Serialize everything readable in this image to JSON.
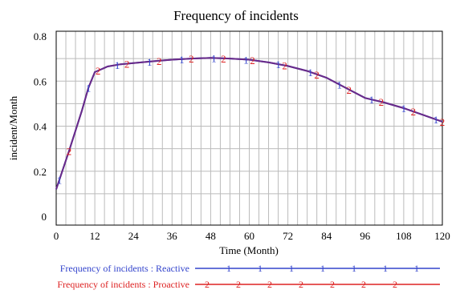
{
  "chart_data": {
    "type": "line",
    "title": "Frequency of incidents",
    "xlabel": "Time (Month)",
    "ylabel": "incident/Month",
    "xlim": [
      0,
      120
    ],
    "ylim": [
      0,
      0.8
    ],
    "x_ticks": [
      0,
      12,
      24,
      36,
      48,
      60,
      72,
      84,
      96,
      108,
      120
    ],
    "y_ticks": [
      0,
      0.2,
      0.4,
      0.6,
      0.8
    ],
    "y_tick_labels": [
      "0",
      "0.2",
      "0.4",
      "0.6",
      "0.8"
    ],
    "grid": true,
    "legend_position": "bottom",
    "series": [
      {
        "name": "Frequency of incidents : Reactive",
        "marker": "1",
        "color": "#3344cc",
        "x": [
          0,
          4,
          8,
          10,
          12,
          16,
          20,
          24,
          30,
          36,
          42,
          48,
          54,
          60,
          66,
          72,
          78,
          84,
          90,
          96,
          102,
          108,
          114,
          120
        ],
        "y": [
          0.12,
          0.29,
          0.47,
          0.57,
          0.64,
          0.665,
          0.675,
          0.68,
          0.688,
          0.695,
          0.7,
          0.703,
          0.7,
          0.695,
          0.683,
          0.667,
          0.645,
          0.615,
          0.57,
          0.525,
          0.505,
          0.48,
          0.45,
          0.42
        ],
        "marker_x": [
          1,
          10,
          19,
          29,
          39,
          49,
          59,
          69,
          79,
          88,
          98,
          108,
          118
        ]
      },
      {
        "name": "Frequency of incidents : Proactive",
        "marker": "2",
        "color": "#dd2222",
        "x": [
          0,
          4,
          8,
          10,
          12,
          16,
          20,
          24,
          30,
          36,
          42,
          48,
          54,
          60,
          66,
          72,
          78,
          84,
          90,
          96,
          102,
          108,
          114,
          120
        ],
        "y": [
          0.12,
          0.29,
          0.47,
          0.57,
          0.64,
          0.665,
          0.675,
          0.68,
          0.688,
          0.695,
          0.7,
          0.703,
          0.7,
          0.695,
          0.683,
          0.667,
          0.645,
          0.615,
          0.57,
          0.525,
          0.505,
          0.48,
          0.45,
          0.42
        ],
        "marker_x": [
          4,
          13,
          22,
          32,
          42,
          52,
          61,
          71,
          81,
          91,
          101,
          111,
          120
        ]
      }
    ],
    "line_color": "#6a2a88"
  }
}
